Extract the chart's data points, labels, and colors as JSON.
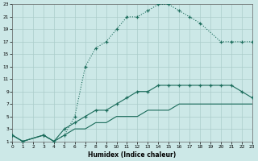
{
  "xlabel": "Humidex (Indice chaleur)",
  "bg_color": "#cce8e7",
  "grid_color": "#aaccca",
  "line_color": "#1a6b5a",
  "xlim": [
    0,
    23
  ],
  "ylim": [
    1,
    23
  ],
  "xticks": [
    0,
    1,
    2,
    3,
    4,
    5,
    6,
    7,
    8,
    9,
    10,
    11,
    12,
    13,
    14,
    15,
    16,
    17,
    18,
    19,
    20,
    21,
    22,
    23
  ],
  "yticks": [
    1,
    3,
    5,
    7,
    9,
    11,
    13,
    15,
    17,
    19,
    21,
    23
  ],
  "curve1_x": [
    0,
    1,
    3,
    4,
    5,
    6,
    7,
    8,
    9,
    10,
    11,
    12,
    13,
    14,
    15,
    16,
    17,
    18,
    20,
    21,
    22,
    23
  ],
  "curve1_y": [
    2,
    1,
    2,
    1,
    2,
    5,
    13,
    16,
    17,
    19,
    21,
    21,
    22,
    23,
    23,
    22,
    21,
    20,
    17,
    17,
    17,
    17
  ],
  "curve2_x": [
    0,
    1,
    3,
    4,
    5,
    6,
    7,
    8,
    9,
    10,
    11,
    12,
    13,
    14,
    15,
    16,
    17,
    18,
    19,
    20,
    21,
    22,
    23
  ],
  "curve2_y": [
    2,
    1,
    2,
    1,
    3,
    4,
    5,
    6,
    6,
    7,
    8,
    9,
    9,
    10,
    10,
    10,
    10,
    10,
    10,
    10,
    10,
    9,
    8
  ],
  "curve3_x": [
    0,
    1,
    3,
    4,
    5,
    6,
    7,
    8,
    9,
    10,
    11,
    12,
    13,
    14,
    15,
    16,
    17,
    18,
    19,
    20,
    21,
    22,
    23
  ],
  "curve3_y": [
    2,
    1,
    2,
    1,
    2,
    3,
    3,
    4,
    4,
    5,
    5,
    5,
    6,
    6,
    6,
    7,
    7,
    7,
    7,
    7,
    7,
    7,
    7
  ]
}
